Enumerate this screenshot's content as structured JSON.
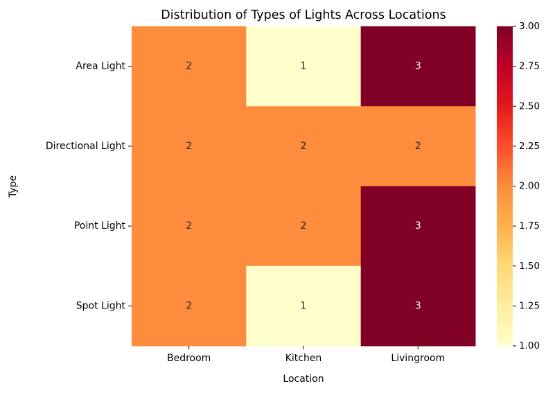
{
  "chart_data": {
    "type": "heatmap",
    "title": "Distribution of Types of Lights Across Locations",
    "xlabel": "Location",
    "ylabel": "Type",
    "x_categories": [
      "Bedroom",
      "Kitchen",
      "Livingroom"
    ],
    "y_categories": [
      "Area Light",
      "Directional Light",
      "Point Light",
      "Spot Light"
    ],
    "values": [
      [
        2,
        1,
        3
      ],
      [
        2,
        2,
        2
      ],
      [
        2,
        2,
        3
      ],
      [
        2,
        1,
        3
      ]
    ],
    "colorbar": {
      "min": 1.0,
      "max": 3.0,
      "ticks": [
        "1.00",
        "1.25",
        "1.50",
        "1.75",
        "2.00",
        "2.25",
        "2.50",
        "2.75",
        "3.00"
      ],
      "colormap": "YlOrRd"
    },
    "annotations": true,
    "grid": false,
    "colors": {
      "low": "#ffffcc",
      "mid": "#fd8d3c",
      "high": "#800026",
      "text_light": "#ffffff",
      "text_dark": "#262626"
    }
  }
}
